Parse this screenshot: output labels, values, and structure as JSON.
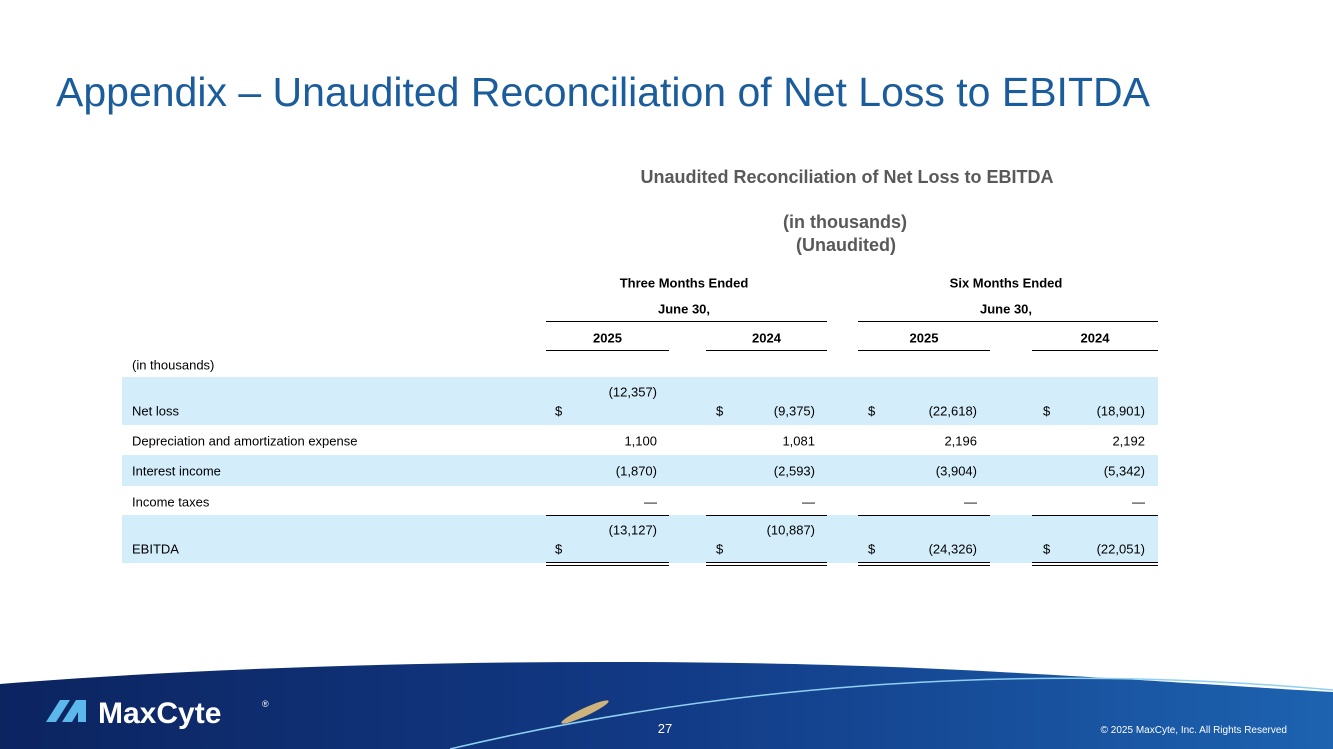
{
  "title": "Appendix – Unaudited Reconciliation of Net Loss to EBITDA",
  "table": {
    "heading": "Unaudited Reconciliation of Net Loss to EBITDA",
    "units": "(in thousands)",
    "status": "(Unaudited)",
    "periods": [
      {
        "label": "Three Months Ended",
        "date": "June 30,"
      },
      {
        "label": "Six Months Ended",
        "date": "June 30,"
      }
    ],
    "years": [
      "2025",
      "2024",
      "2025",
      "2024"
    ],
    "row_header": "(in thousands)",
    "rows": [
      {
        "label": "Net loss",
        "cells": [
          {
            "prefix": "$",
            "value": "(12,357)"
          },
          {
            "prefix": "$",
            "value": "(9,375)"
          },
          {
            "prefix": "$",
            "value": "(22,618)"
          },
          {
            "prefix": "$",
            "value": "(18,901)"
          }
        ]
      },
      {
        "label": "Depreciation and amortization expense",
        "cells": [
          "1,100",
          "1,081",
          "2,196",
          "2,192"
        ]
      },
      {
        "label": "Interest income",
        "cells": [
          "(1,870)",
          "(2,593)",
          "(3,904)",
          "(5,342)"
        ]
      },
      {
        "label": "Income taxes",
        "cells": [
          "—",
          "—",
          "—",
          "—"
        ]
      },
      {
        "label": "EBITDA",
        "cells": [
          {
            "prefix": "$",
            "value": "(13,127)"
          },
          {
            "prefix": "$",
            "value": "(10,887)"
          },
          {
            "prefix": "$",
            "value": "(24,326)"
          },
          {
            "prefix": "$",
            "value": "(22,051)"
          }
        ]
      }
    ]
  },
  "footer": {
    "logo": "MaxCyte",
    "registered": "®",
    "page": "27",
    "copyright": "© 2025 MaxCyte, Inc. All Rights Reserved"
  }
}
